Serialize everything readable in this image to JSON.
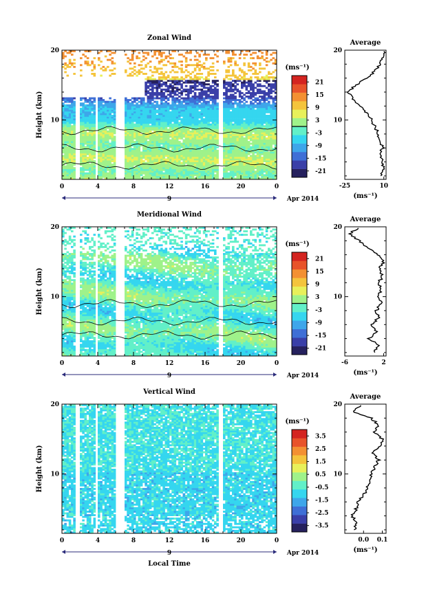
{
  "xaxis": {
    "title": "Local Time",
    "ticks": [
      "0",
      "4",
      "8",
      "12",
      "16",
      "20",
      "0"
    ],
    "day_label": "9",
    "month_label": "Apr 2014"
  },
  "yaxis": {
    "title": "Height (km)",
    "ticks": [
      "10",
      "20"
    ]
  },
  "colorbar_unit": "(ms⁻¹)",
  "average_unit": "(ms⁻¹)",
  "palette": [
    "#26215e",
    "#3a3fa8",
    "#3f6fd6",
    "#3ea6ea",
    "#35d6ef",
    "#62f0c8",
    "#9ff28a",
    "#e8f05a",
    "#f4c43c",
    "#f39032",
    "#e8532a",
    "#d42420"
  ],
  "chart_data": [
    {
      "type": "heatmap",
      "title": "Zonal Wind",
      "xlabel": "Local Time",
      "ylabel": "Height (km)",
      "xlim": [
        0,
        24
      ],
      "ylim": [
        1.5,
        20
      ],
      "colorbar": {
        "min": -24,
        "max": 24,
        "ticks": [
          "21",
          "15",
          "9",
          "3",
          "-3",
          "-9",
          "-15",
          "-21"
        ],
        "zero_line": true
      },
      "profile": {
        "title": "Average",
        "xlim": [
          -25,
          12
        ],
        "xticks": [
          "-25",
          "10"
        ],
        "yticks": [
          "10",
          "20"
        ],
        "height": [
          2,
          3,
          4,
          5,
          6,
          7,
          8,
          9,
          10,
          11,
          12,
          13,
          14,
          15,
          16,
          17,
          18,
          19,
          20
        ],
        "value": [
          8,
          10,
          9,
          6,
          9,
          7,
          5,
          2,
          -1,
          -5,
          -12,
          -18,
          -22,
          -15,
          -5,
          2,
          6,
          9,
          11
        ]
      }
    },
    {
      "type": "heatmap",
      "title": "Meridional Wind",
      "xlabel": "Local Time",
      "ylabel": "Height (km)",
      "xlim": [
        0,
        24
      ],
      "ylim": [
        1.5,
        20
      ],
      "colorbar": {
        "min": -24,
        "max": 24,
        "ticks": [
          "21",
          "15",
          "9",
          "3",
          "-3",
          "-9",
          "-15",
          "-21"
        ],
        "zero_line": true
      },
      "profile": {
        "title": "Average",
        "xlim": [
          -6,
          2.5
        ],
        "xticks": [
          "-6",
          "2"
        ],
        "yticks": [
          "10",
          "20"
        ],
        "height": [
          2,
          3,
          4,
          5,
          6,
          7,
          8,
          9,
          10,
          11,
          12,
          13,
          14,
          15,
          16,
          17,
          18,
          19,
          20
        ],
        "value": [
          0,
          1,
          -1,
          0.5,
          -0.5,
          1,
          0.5,
          1.5,
          0.8,
          1.5,
          1.0,
          1.8,
          1.2,
          2.0,
          1.0,
          -1.5,
          -3,
          -5,
          -3
        ]
      }
    },
    {
      "type": "heatmap",
      "title": "Vertical Wind",
      "xlabel": "Local Time",
      "ylabel": "Height (km)",
      "xlim": [
        0,
        24
      ],
      "ylim": [
        1.5,
        20
      ],
      "colorbar": {
        "min": -4,
        "max": 4,
        "ticks": [
          "3.5",
          "2.5",
          "1.5",
          "0.5",
          "-0.5",
          "-1.5",
          "-2.5",
          "-3.5"
        ],
        "zero_line": false
      },
      "profile": {
        "title": "Average",
        "xlim": [
          -0.1,
          0.12
        ],
        "xticks": [
          "0.0",
          "0.1"
        ],
        "yticks": [
          "10",
          "20"
        ],
        "height": [
          2,
          3,
          4,
          5,
          6,
          7,
          8,
          9,
          10,
          11,
          12,
          13,
          14,
          15,
          16,
          17,
          18,
          19,
          20
        ],
        "value": [
          -0.05,
          -0.04,
          -0.06,
          -0.04,
          -0.03,
          0,
          0.02,
          0.03,
          0.04,
          0.06,
          0.08,
          0.05,
          0.09,
          0.1,
          0.06,
          0.08,
          0.04,
          -0.06,
          0.0
        ]
      }
    }
  ]
}
